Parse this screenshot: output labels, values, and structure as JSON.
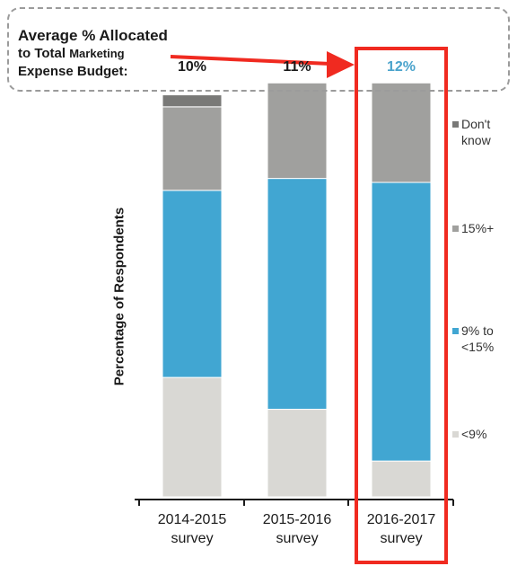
{
  "header": {
    "label_line1": "Average % Allocated",
    "label_line2a": "to Total",
    "label_line2b": "Marketing",
    "label_line3": "Expense Budget:",
    "values": [
      "10%",
      "11%",
      "12%"
    ],
    "value_colors": [
      "#1a1a1a",
      "#1a1a1a",
      "#4aa3cc"
    ]
  },
  "chart_data": {
    "type": "bar",
    "stacked": true,
    "categories": [
      {
        "line1": "2014-2015",
        "line2": "survey"
      },
      {
        "line1": "2015-2016",
        "line2": "survey"
      },
      {
        "line1": "2016-2017",
        "line2": "survey"
      }
    ],
    "ylabel": "Percentage of Respondents",
    "ylim": [
      0,
      100
    ],
    "series": [
      {
        "name": "<9%",
        "color": "#d9d8d4",
        "values": [
          30,
          22,
          9
        ]
      },
      {
        "name": "9% to <15%",
        "color": "#41a6d2",
        "values": [
          47,
          58,
          70
        ]
      },
      {
        "name": "15%+",
        "color": "#a0a09e",
        "values": [
          21,
          24,
          25
        ]
      },
      {
        "name": "Don't know",
        "color": "#797977",
        "values": [
          3,
          0,
          0
        ]
      }
    ],
    "legend": [
      {
        "t1": "Don't",
        "t2": "know",
        "color": "#797977"
      },
      {
        "t1": "15%+",
        "t2": "",
        "color": "#a0a09e"
      },
      {
        "t1": "9% to",
        "t2": "<15%",
        "color": "#41a6d2"
      },
      {
        "t1": "<9%",
        "t2": "",
        "color": "#d9d8d4"
      }
    ],
    "highlight_color": "#f02a20"
  }
}
